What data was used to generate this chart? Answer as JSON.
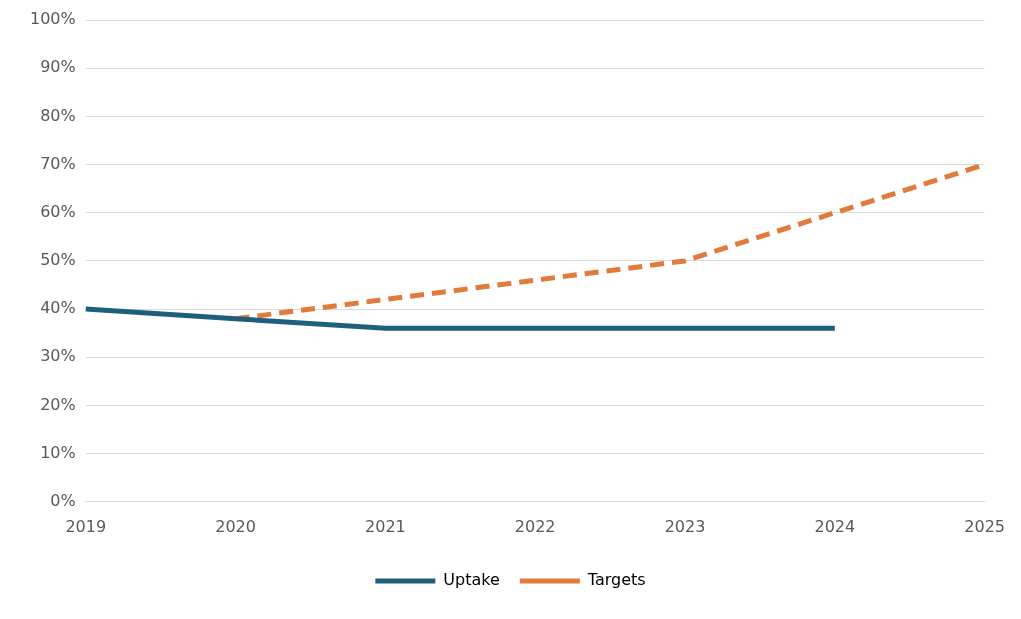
{
  "chart_data": {
    "type": "line",
    "categories": [
      "2019",
      "2020",
      "2021",
      "2022",
      "2023",
      "2024",
      "2025"
    ],
    "series": [
      {
        "name": "Uptake",
        "color": "#1f5f7d",
        "values": [
          40,
          38,
          36,
          36,
          36,
          36,
          null
        ]
      },
      {
        "name": "Targets",
        "color": "#e07b3c",
        "line_style": "dashed",
        "values": [
          null,
          38,
          42,
          46,
          50,
          60,
          70
        ]
      }
    ],
    "ylim": [
      0,
      100
    ],
    "yticks": [
      {
        "value": 0,
        "label": "0%"
      },
      {
        "value": 10,
        "label": "10%"
      },
      {
        "value": 20,
        "label": "20%"
      },
      {
        "value": 30,
        "label": "30%"
      },
      {
        "value": 40,
        "label": "40%"
      },
      {
        "value": 50,
        "label": "50%"
      },
      {
        "value": 60,
        "label": "60%"
      },
      {
        "value": 70,
        "label": "70%"
      },
      {
        "value": 80,
        "label": "80%"
      },
      {
        "value": 90,
        "label": "90%"
      },
      {
        "value": 100,
        "label": "100%"
      }
    ],
    "grid": "y",
    "legend": "bottom",
    "marker": "none"
  }
}
